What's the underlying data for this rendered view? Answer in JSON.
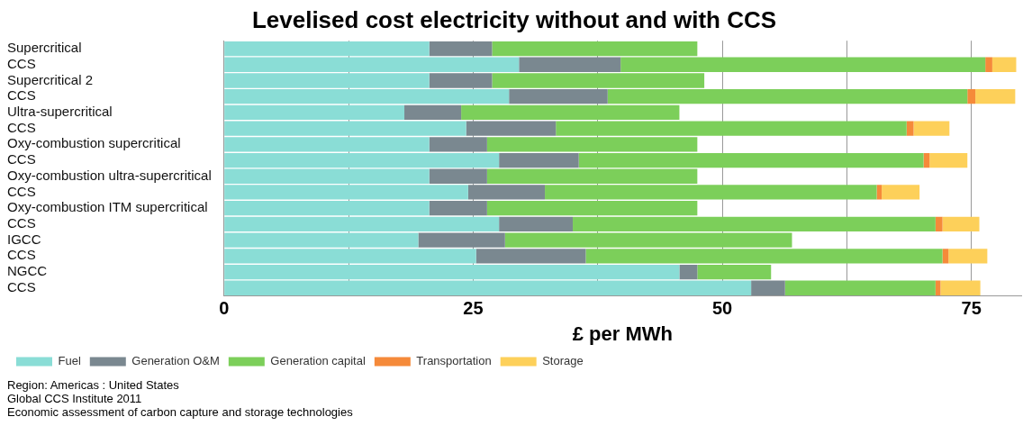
{
  "chart_data": {
    "type": "bar",
    "orientation": "horizontal",
    "stacked": true,
    "title": "Levelised cost electricity without and with CCS",
    "xlabel": "£ per MWh",
    "categories": [
      "Supercritical",
      "CCS",
      "Supercritical 2",
      "CCS",
      "Ultra-supercritical",
      "CCS",
      "Oxy-combustion supercritical",
      "CCS",
      "Oxy-combustion ultra-supercritical",
      "CCS",
      "Oxy-combustion ITM supercritical",
      "CCS",
      "IGCC",
      "CCS",
      "NGCC",
      "CCS"
    ],
    "series": [
      {
        "name": "Fuel",
        "color": "#8addd6",
        "values": [
          20.6,
          29.6,
          20.6,
          28.6,
          18.1,
          24.3,
          20.6,
          27.6,
          20.6,
          24.5,
          20.6,
          27.6,
          19.5,
          25.3,
          45.7,
          52.9
        ]
      },
      {
        "name": "Generation O&M",
        "color": "#7a8890",
        "values": [
          6.3,
          10.2,
          6.3,
          9.9,
          5.7,
          9.0,
          5.8,
          8.0,
          5.8,
          7.7,
          5.8,
          7.4,
          8.7,
          11.0,
          1.8,
          3.4
        ]
      },
      {
        "name": "Generation capital",
        "color": "#7ccf5a",
        "values": [
          20.6,
          36.6,
          21.3,
          36.1,
          21.9,
          35.2,
          21.1,
          34.6,
          21.1,
          33.3,
          21.1,
          36.4,
          28.8,
          35.8,
          7.4,
          15.1
        ]
      },
      {
        "name": "Transportation",
        "color": "#f58a3a",
        "values": [
          0,
          0.7,
          0,
          0.8,
          0,
          0.7,
          0,
          0.6,
          0,
          0.5,
          0,
          0.7,
          0,
          0.6,
          0,
          0.5
        ]
      },
      {
        "name": "Storage",
        "color": "#fdd05a",
        "values": [
          0,
          2.4,
          0,
          4.0,
          0,
          3.6,
          0,
          3.8,
          0,
          3.8,
          0,
          3.7,
          0,
          3.9,
          0,
          4.0
        ]
      }
    ],
    "xlim": [
      0,
      80
    ],
    "xticks": [
      0,
      {
        "value": 12.5,
        "label": null
      },
      25,
      {
        "value": 37.5,
        "label": null
      },
      50,
      {
        "value": 62.5,
        "label": null
      },
      75
    ],
    "grid": "x",
    "legend": "bottom left",
    "annotations": [
      "Region: Americas : United States",
      "Global CCS Institute 2011",
      "Economic assessment of carbon capture and storage technologies"
    ]
  }
}
